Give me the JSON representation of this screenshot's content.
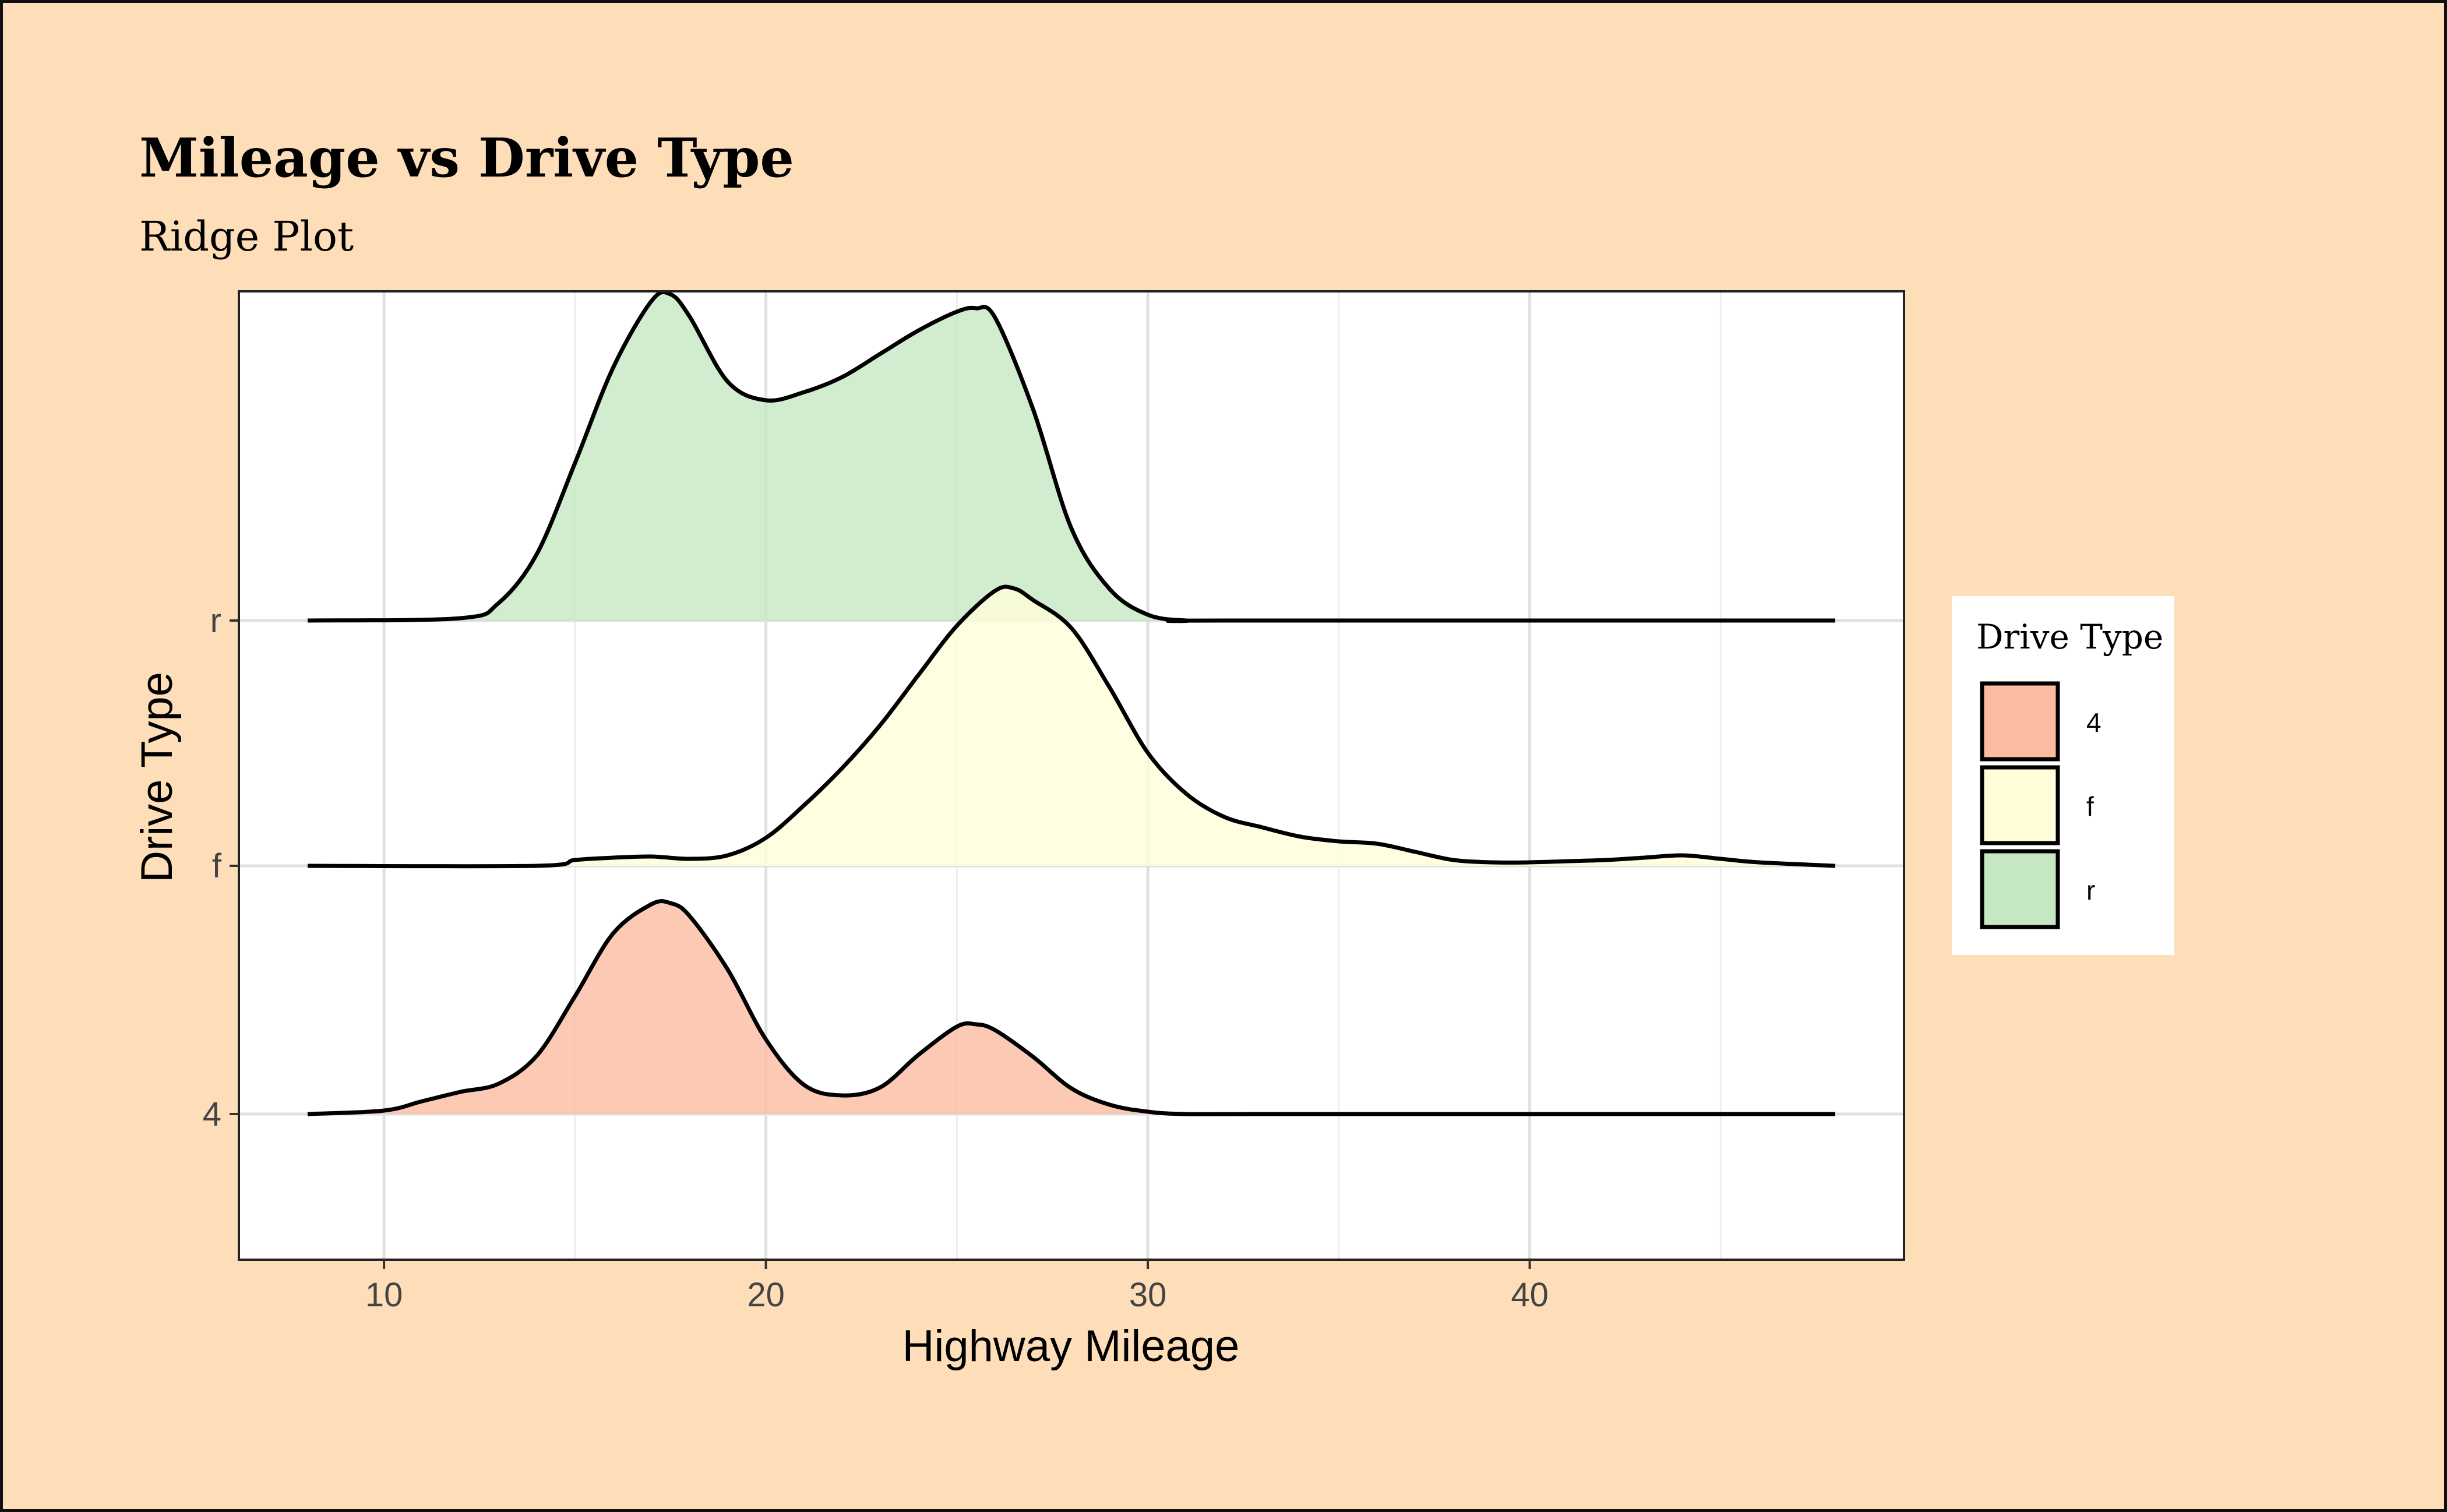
{
  "chart_data": {
    "type": "ridgeline",
    "title": "Mileage vs Drive Type",
    "subtitle": "Ridge Plot",
    "xlabel": "Highway Mileage",
    "ylabel": "Drive Type",
    "xlim": [
      6.2,
      49.8
    ],
    "x_ticks": [
      10,
      20,
      30,
      40
    ],
    "x_tick_labels": [
      "10",
      "20",
      "30",
      "40"
    ],
    "categories": [
      "4",
      "f",
      "r"
    ],
    "grid": true,
    "legend": {
      "title": "Drive Type",
      "placement": "right"
    },
    "series": [
      {
        "name": "4",
        "color": "#FBBBA1",
        "x": [
          8,
          10,
          11,
          12,
          13,
          14,
          15,
          16,
          17,
          17.5,
          18,
          19,
          20,
          21,
          22,
          23,
          24,
          25,
          25.5,
          26,
          27,
          28,
          29,
          30,
          31,
          33,
          48
        ],
        "density": [
          0.0,
          0.03,
          0.11,
          0.19,
          0.26,
          0.5,
          1.01,
          1.55,
          1.8,
          1.81,
          1.7,
          1.24,
          0.64,
          0.25,
          0.16,
          0.23,
          0.51,
          0.75,
          0.77,
          0.72,
          0.49,
          0.22,
          0.08,
          0.02,
          0.0,
          0.0,
          0.0
        ]
      },
      {
        "name": "f",
        "color": "#FFFED8",
        "x": [
          8,
          14,
          15,
          16,
          17,
          18,
          19,
          20,
          21,
          22,
          23,
          24,
          25,
          26,
          26.5,
          27,
          28,
          29,
          30,
          31,
          32,
          33,
          34,
          35,
          36,
          37,
          38,
          39,
          40,
          41,
          42,
          43,
          44,
          45,
          46,
          48
        ],
        "density": [
          0.0,
          0.0,
          0.05,
          0.07,
          0.08,
          0.06,
          0.09,
          0.24,
          0.52,
          0.84,
          1.21,
          1.64,
          2.06,
          2.36,
          2.38,
          2.28,
          2.04,
          1.53,
          0.97,
          0.62,
          0.42,
          0.33,
          0.25,
          0.21,
          0.19,
          0.12,
          0.05,
          0.03,
          0.03,
          0.04,
          0.05,
          0.07,
          0.09,
          0.06,
          0.03,
          0.0
        ]
      },
      {
        "name": "r",
        "color": "#C5E7C2",
        "x": [
          8,
          12,
          13,
          14,
          15,
          16,
          17,
          17.5,
          18,
          19,
          20,
          21,
          22,
          23,
          24,
          25,
          25.5,
          26,
          27,
          28,
          29,
          30,
          31,
          32,
          48
        ],
        "density": [
          0.0,
          0.02,
          0.15,
          0.57,
          1.35,
          2.17,
          2.74,
          2.8,
          2.61,
          2.05,
          1.89,
          1.96,
          2.09,
          2.29,
          2.49,
          2.65,
          2.68,
          2.6,
          1.81,
          0.79,
          0.27,
          0.05,
          0.0,
          0.0,
          0.0
        ]
      }
    ]
  }
}
